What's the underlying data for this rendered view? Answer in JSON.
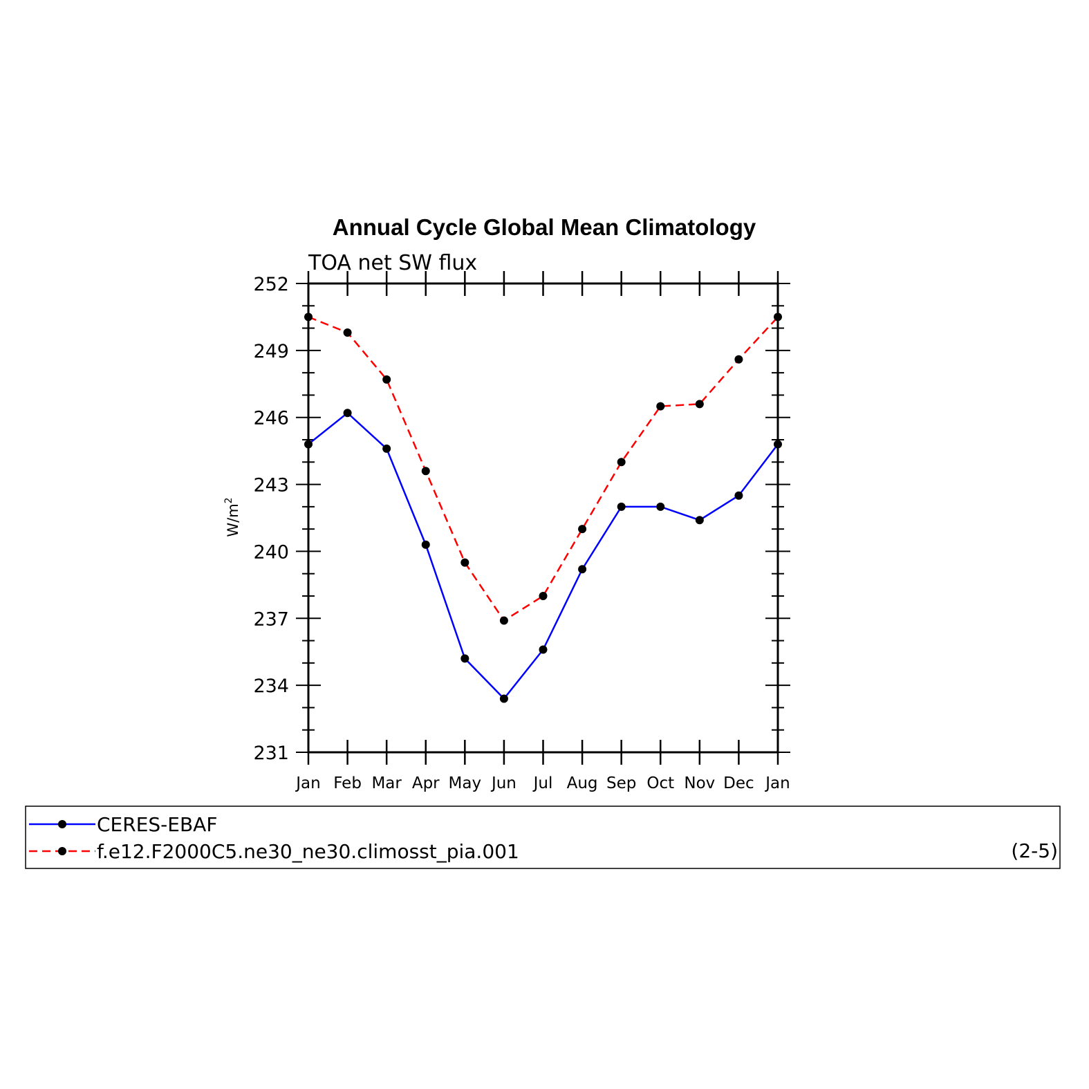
{
  "chart_data": {
    "type": "line",
    "title": "Annual Cycle Global Mean Climatology",
    "subtitle": "TOA net SW flux",
    "ylabel": "W/m",
    "ylabel_superscript": "2",
    "ylim": [
      231,
      252
    ],
    "yticks": [
      231,
      234,
      237,
      240,
      243,
      246,
      249,
      252
    ],
    "categories": [
      "Jan",
      "Feb",
      "Mar",
      "Apr",
      "May",
      "Jun",
      "Jul",
      "Aug",
      "Sep",
      "Oct",
      "Nov",
      "Dec",
      "Jan"
    ],
    "series": [
      {
        "name": "CERES-EBAF",
        "color": "#0000ff",
        "dash": "solid",
        "values": [
          244.8,
          246.2,
          244.6,
          240.3,
          235.2,
          233.4,
          235.6,
          239.2,
          242.0,
          242.0,
          241.4,
          242.5,
          244.8
        ]
      },
      {
        "name": "f.e12.F2000C5.ne30_ne30.climosst_pia.001",
        "color": "#ff0000",
        "dash": "dashed",
        "values": [
          250.5,
          249.8,
          247.7,
          243.6,
          239.5,
          236.9,
          238.0,
          241.0,
          244.0,
          246.5,
          246.6,
          248.6,
          250.5
        ]
      }
    ],
    "marker_color": "#000000",
    "grid": false,
    "legend_placement": "bottom",
    "legend_note": "(2-5)"
  }
}
